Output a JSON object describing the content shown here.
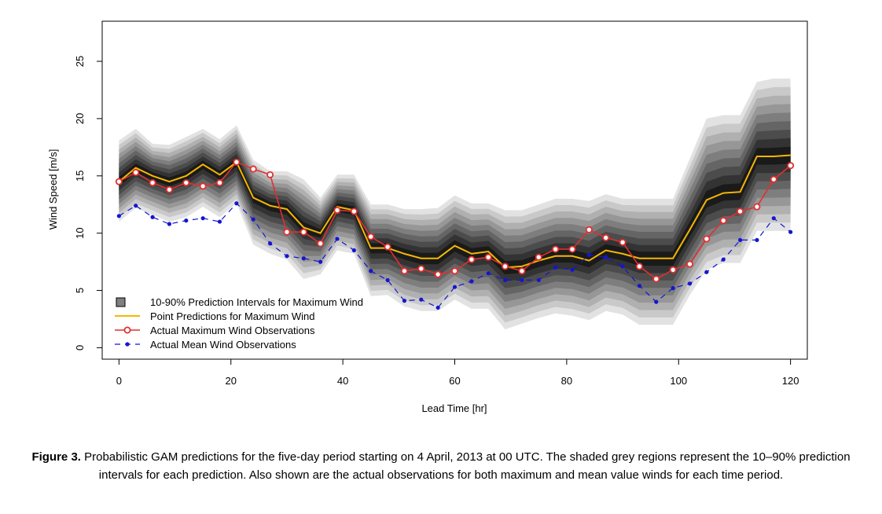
{
  "caption": {
    "label": "Figure 3.",
    "text": "Probabilistic GAM predictions for the five-day period starting on 4 April, 2013 at 00 UTC. The shaded grey regions represent the 10–90% prediction intervals for each prediction. Also shown are the actual observations for both maximum and mean value winds for each time period."
  },
  "chart_data": {
    "type": "line",
    "xlabel": "Lead Time [hr]",
    "ylabel": "Wind Speed [m/s]",
    "xlim": [
      -3,
      123
    ],
    "ylim": [
      -1,
      28.5
    ],
    "xticks": [
      0,
      20,
      40,
      60,
      80,
      100,
      120
    ],
    "yticks": [
      0,
      5,
      10,
      15,
      20,
      25
    ],
    "grid": false,
    "legend_position": "bottom-left",
    "x": [
      0,
      3,
      6,
      9,
      12,
      15,
      18,
      21,
      24,
      27,
      30,
      33,
      36,
      39,
      42,
      45,
      48,
      51,
      54,
      57,
      60,
      63,
      66,
      69,
      72,
      75,
      78,
      81,
      84,
      87,
      90,
      93,
      96,
      99,
      102,
      105,
      108,
      111,
      114,
      117,
      120
    ],
    "series": [
      {
        "name": "Point Predictions for Maximum Wind",
        "kind": "line",
        "color": "#f5b700",
        "values": [
          14.5,
          15.7,
          15.0,
          14.5,
          15.0,
          16.0,
          15.1,
          16.2,
          13.1,
          12.4,
          12.1,
          10.5,
          10.0,
          12.3,
          12.0,
          8.7,
          8.7,
          8.2,
          7.8,
          7.8,
          8.9,
          8.2,
          8.4,
          7.0,
          7.1,
          7.6,
          8.0,
          8.0,
          7.6,
          8.5,
          8.2,
          7.8,
          7.8,
          7.8,
          10.3,
          12.9,
          13.5,
          13.6,
          16.7,
          16.7,
          16.8
        ]
      },
      {
        "name": "Actual Maximum Wind Observations",
        "kind": "line-open-circles",
        "color": "#e03030",
        "values": [
          14.5,
          15.3,
          14.4,
          13.8,
          14.4,
          14.1,
          14.4,
          16.2,
          15.6,
          15.1,
          10.1,
          10.1,
          9.1,
          12.0,
          11.9,
          9.7,
          8.8,
          6.7,
          6.9,
          6.4,
          6.7,
          7.7,
          7.9,
          7.1,
          6.7,
          7.9,
          8.6,
          8.6,
          10.3,
          9.6,
          9.2,
          7.1,
          6.0,
          6.8,
          7.3,
          9.5,
          11.1,
          11.9,
          12.3,
          14.7,
          15.9
        ]
      },
      {
        "name": "Actual Mean Wind Observations",
        "kind": "dashed-dots",
        "color": "#1515d0",
        "values": [
          11.5,
          12.4,
          11.4,
          10.8,
          11.1,
          11.3,
          11.0,
          12.6,
          11.2,
          9.1,
          8.0,
          7.8,
          7.5,
          9.5,
          8.5,
          6.7,
          5.9,
          4.1,
          4.2,
          3.5,
          5.3,
          5.8,
          6.5,
          5.9,
          5.9,
          5.9,
          7.0,
          6.8,
          8.1,
          7.9,
          7.1,
          5.4,
          4.0,
          5.2,
          5.6,
          6.6,
          7.7,
          9.4,
          9.4,
          11.3,
          10.1
        ]
      },
      {
        "name": "10-90% Prediction Intervals for Maximum Wind",
        "kind": "band",
        "lower_10": [
          11.0,
          12.2,
          11.6,
          11.0,
          11.4,
          12.3,
          11.4,
          12.6,
          9.0,
          8.2,
          7.7,
          6.0,
          6.4,
          8.5,
          8.2,
          4.5,
          4.6,
          3.6,
          3.2,
          3.2,
          4.2,
          3.4,
          3.4,
          1.6,
          2.1,
          2.6,
          3.0,
          2.8,
          2.4,
          3.2,
          2.9,
          2.0,
          2.0,
          2.0,
          4.6,
          6.8,
          7.4,
          7.4,
          10.2,
          10.2,
          10.2
        ],
        "upper_90": [
          18.1,
          19.1,
          17.8,
          17.7,
          18.4,
          19.1,
          18.2,
          19.4,
          16.4,
          15.4,
          15.4,
          14.7,
          13.1,
          15.1,
          15.1,
          12.5,
          12.5,
          12.1,
          12.1,
          12.2,
          13.3,
          12.6,
          12.6,
          12.0,
          12.0,
          12.5,
          13.0,
          13.0,
          12.8,
          13.4,
          13.0,
          13.0,
          13.0,
          13.0,
          16.5,
          20.0,
          20.3,
          20.3,
          23.2,
          23.5,
          23.5
        ]
      }
    ],
    "legend": [
      "10-90% Prediction Intervals for Maximum Wind",
      "Point Predictions for Maximum Wind",
      "Actual Maximum Wind Observations",
      "Actual Mean Wind Observations"
    ]
  }
}
